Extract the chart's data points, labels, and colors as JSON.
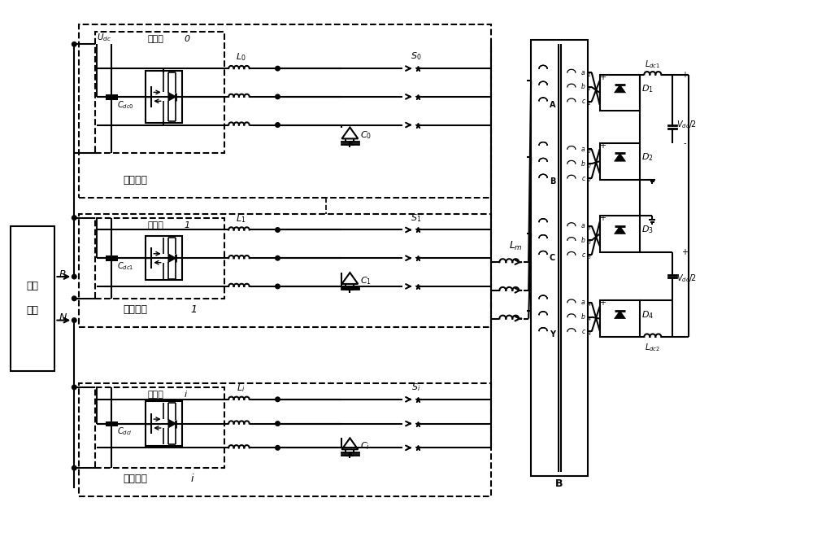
{
  "bg_color": "#ffffff",
  "line_color": "#000000",
  "lw": 1.5,
  "figsize": [
    10.0,
    6.87
  ],
  "dpi": 100,
  "labels": {
    "pv": [
      "光伏",
      "阵列"
    ],
    "main_inv": "主逆变器",
    "slave1": "从逆变器",
    "slave1_idx": "1",
    "slavei": "从逆变器",
    "slavei_idx": "i",
    "inv_bridge": "逆变桥",
    "Lm": "$L_m$",
    "B_label": "B"
  }
}
